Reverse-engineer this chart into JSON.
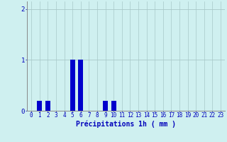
{
  "categories": [
    0,
    1,
    2,
    3,
    4,
    5,
    6,
    7,
    8,
    9,
    10,
    11,
    12,
    13,
    14,
    15,
    16,
    17,
    18,
    19,
    20,
    21,
    22,
    23
  ],
  "values": [
    0,
    0.2,
    0.2,
    0,
    0,
    1.0,
    1.0,
    0,
    0,
    0.2,
    0.2,
    0,
    0,
    0,
    0,
    0,
    0,
    0,
    0,
    0,
    0,
    0,
    0,
    0
  ],
  "bar_color": "#0000cc",
  "background_color": "#cff0f0",
  "grid_color": "#a8c8c8",
  "xlabel": "Précipitations 1h ( mm )",
  "ylim": [
    0,
    2.15
  ],
  "yticks": [
    0,
    1,
    2
  ],
  "xlabel_fontsize": 7,
  "tick_fontsize": 5.5
}
